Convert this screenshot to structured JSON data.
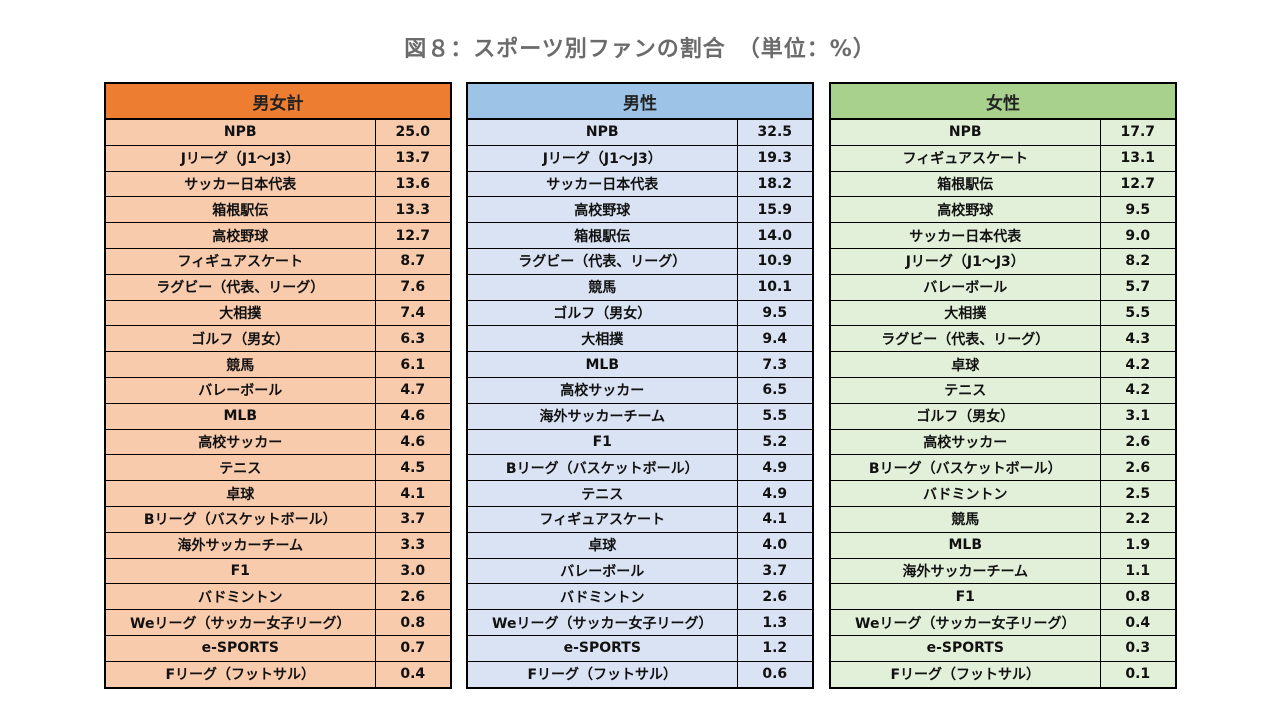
{
  "title": "図８：スポーツ別ファンの割合　（単位：%）",
  "tables": [
    {
      "id": "total",
      "header": "男女計",
      "colors": {
        "header": "#ed7d31",
        "cell": "#f8cbad"
      },
      "rows": [
        {
          "name": "NPB",
          "value": "25.0"
        },
        {
          "name": "Jリーグ（J1～J3）",
          "value": "13.7"
        },
        {
          "name": "サッカー日本代表",
          "value": "13.6"
        },
        {
          "name": "箱根駅伝",
          "value": "13.3"
        },
        {
          "name": "高校野球",
          "value": "12.7"
        },
        {
          "name": "フィギュアスケート",
          "value": "8.7"
        },
        {
          "name": "ラグビー（代表、リーグ）",
          "value": "7.6"
        },
        {
          "name": "大相撲",
          "value": "7.4"
        },
        {
          "name": "ゴルフ（男女）",
          "value": "6.3"
        },
        {
          "name": "競馬",
          "value": "6.1"
        },
        {
          "name": "バレーボール",
          "value": "4.7"
        },
        {
          "name": "MLB",
          "value": "4.6"
        },
        {
          "name": "高校サッカー",
          "value": "4.6"
        },
        {
          "name": "テニス",
          "value": "4.5"
        },
        {
          "name": "卓球",
          "value": "4.1"
        },
        {
          "name": "Bリーグ（バスケットボール）",
          "value": "3.7"
        },
        {
          "name": "海外サッカーチーム",
          "value": "3.3"
        },
        {
          "name": "F1",
          "value": "3.0"
        },
        {
          "name": "バドミントン",
          "value": "2.6"
        },
        {
          "name": "Weリーグ（サッカー女子リーグ）",
          "value": "0.8"
        },
        {
          "name": "e-SPORTS",
          "value": "0.7"
        },
        {
          "name": "Fリーグ（フットサル）",
          "value": "0.4"
        }
      ]
    },
    {
      "id": "male",
      "header": "男性",
      "colors": {
        "header": "#9dc3e6",
        "cell": "#dae3f3"
      },
      "rows": [
        {
          "name": "NPB",
          "value": "32.5"
        },
        {
          "name": "Jリーグ（J1～J3）",
          "value": "19.3"
        },
        {
          "name": "サッカー日本代表",
          "value": "18.2"
        },
        {
          "name": "高校野球",
          "value": "15.9"
        },
        {
          "name": "箱根駅伝",
          "value": "14.0"
        },
        {
          "name": "ラグビー（代表、リーグ）",
          "value": "10.9"
        },
        {
          "name": "競馬",
          "value": "10.1"
        },
        {
          "name": "ゴルフ（男女）",
          "value": "9.5"
        },
        {
          "name": "大相撲",
          "value": "9.4"
        },
        {
          "name": "MLB",
          "value": "7.3"
        },
        {
          "name": "高校サッカー",
          "value": "6.5"
        },
        {
          "name": "海外サッカーチーム",
          "value": "5.5"
        },
        {
          "name": "F1",
          "value": "5.2"
        },
        {
          "name": "Bリーグ（バスケットボール）",
          "value": "4.9"
        },
        {
          "name": "テニス",
          "value": "4.9"
        },
        {
          "name": "フィギュアスケート",
          "value": "4.1"
        },
        {
          "name": "卓球",
          "value": "4.0"
        },
        {
          "name": "バレーボール",
          "value": "3.7"
        },
        {
          "name": "バドミントン",
          "value": "2.6"
        },
        {
          "name": "Weリーグ（サッカー女子リーグ）",
          "value": "1.3"
        },
        {
          "name": "e-SPORTS",
          "value": "1.2"
        },
        {
          "name": "Fリーグ（フットサル）",
          "value": "0.6"
        }
      ]
    },
    {
      "id": "female",
      "header": "女性",
      "colors": {
        "header": "#a9d18e",
        "cell": "#e2f0d9"
      },
      "rows": [
        {
          "name": "NPB",
          "value": "17.7"
        },
        {
          "name": "フィギュアスケート",
          "value": "13.1"
        },
        {
          "name": "箱根駅伝",
          "value": "12.7"
        },
        {
          "name": "高校野球",
          "value": "9.5"
        },
        {
          "name": "サッカー日本代表",
          "value": "9.0"
        },
        {
          "name": "Jリーグ（J1～J3）",
          "value": "8.2"
        },
        {
          "name": "バレーボール",
          "value": "5.7"
        },
        {
          "name": "大相撲",
          "value": "5.5"
        },
        {
          "name": "ラグビー（代表、リーグ）",
          "value": "4.3"
        },
        {
          "name": "卓球",
          "value": "4.2"
        },
        {
          "name": "テニス",
          "value": "4.2"
        },
        {
          "name": "ゴルフ（男女）",
          "value": "3.1"
        },
        {
          "name": "高校サッカー",
          "value": "2.6"
        },
        {
          "name": "Bリーグ（バスケットボール）",
          "value": "2.6"
        },
        {
          "name": "バドミントン",
          "value": "2.5"
        },
        {
          "name": "競馬",
          "value": "2.2"
        },
        {
          "name": "MLB",
          "value": "1.9"
        },
        {
          "name": "海外サッカーチーム",
          "value": "1.1"
        },
        {
          "name": "F1",
          "value": "0.8"
        },
        {
          "name": "Weリーグ（サッカー女子リーグ）",
          "value": "0.4"
        },
        {
          "name": "e-SPORTS",
          "value": "0.3"
        },
        {
          "name": "Fリーグ（フットサル）",
          "value": "0.1"
        }
      ]
    }
  ]
}
